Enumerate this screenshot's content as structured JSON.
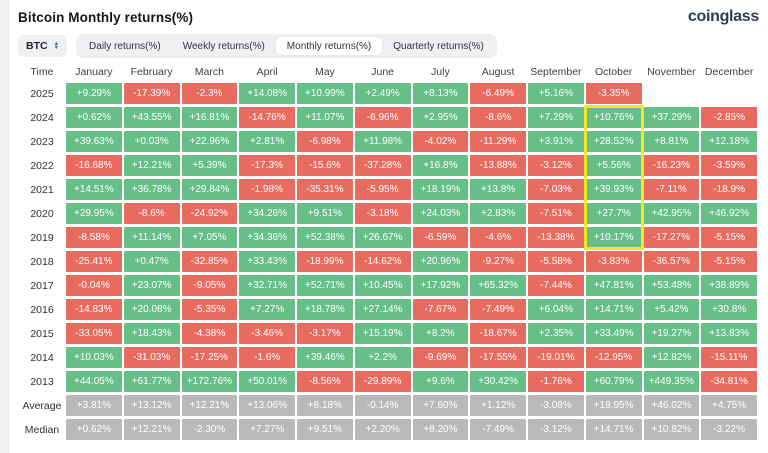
{
  "header": {
    "title": "Bitcoin Monthly returns(%)",
    "logo": "coinglass"
  },
  "toolbar": {
    "coin_selector": "BTC",
    "tabs": [
      {
        "label": "Daily returns(%)",
        "active": false
      },
      {
        "label": "Weekly returns(%)",
        "active": false
      },
      {
        "label": "Monthly returns(%)",
        "active": true
      },
      {
        "label": "Quarterly returns(%)",
        "active": false
      }
    ]
  },
  "chart_data": {
    "type": "heatmap",
    "columns": [
      "Time",
      "January",
      "February",
      "March",
      "April",
      "May",
      "June",
      "July",
      "August",
      "September",
      "October",
      "November",
      "December"
    ],
    "rows": [
      {
        "label": "2025",
        "values": [
          "+9.29%",
          "-17.39%",
          "-2.3%",
          "+14.08%",
          "+10.99%",
          "+2.49%",
          "+8.13%",
          "-6.49%",
          "+5.16%",
          "-3.35%",
          "",
          ""
        ]
      },
      {
        "label": "2024",
        "values": [
          "+0.62%",
          "+43.55%",
          "+16.81%",
          "-14.76%",
          "+11.07%",
          "-6.96%",
          "+2.95%",
          "-8.6%",
          "+7.29%",
          "+10.76%",
          "+37.29%",
          "-2.85%"
        ]
      },
      {
        "label": "2023",
        "values": [
          "+39.63%",
          "+0.03%",
          "+22.96%",
          "+2.81%",
          "-6.98%",
          "+11.98%",
          "-4.02%",
          "-11.29%",
          "+3.91%",
          "+28.52%",
          "+8.81%",
          "+12.18%"
        ]
      },
      {
        "label": "2022",
        "values": [
          "-16.68%",
          "+12.21%",
          "+5.39%",
          "-17.3%",
          "-15.6%",
          "-37.28%",
          "+16.8%",
          "-13.88%",
          "-3.12%",
          "+5.56%",
          "-16.23%",
          "-3.59%"
        ]
      },
      {
        "label": "2021",
        "values": [
          "+14.51%",
          "+36.78%",
          "+29.84%",
          "-1.98%",
          "-35.31%",
          "-5.95%",
          "+18.19%",
          "+13.8%",
          "-7.03%",
          "+39.93%",
          "-7.11%",
          "-18.9%"
        ]
      },
      {
        "label": "2020",
        "values": [
          "+29.95%",
          "-8.6%",
          "-24.92%",
          "+34.26%",
          "+9.51%",
          "-3.18%",
          "+24.03%",
          "+2.83%",
          "-7.51%",
          "+27.7%",
          "+42.95%",
          "+46.92%"
        ]
      },
      {
        "label": "2019",
        "values": [
          "-8.58%",
          "+11.14%",
          "+7.05%",
          "+34.36%",
          "+52.38%",
          "+26.67%",
          "-6.59%",
          "-4.6%",
          "-13.38%",
          "+10.17%",
          "-17.27%",
          "-5.15%"
        ]
      },
      {
        "label": "2018",
        "values": [
          "-25.41%",
          "+0.47%",
          "-32.85%",
          "+33.43%",
          "-18.99%",
          "-14.62%",
          "+20.96%",
          "-9.27%",
          "-5.58%",
          "-3.83%",
          "-36.57%",
          "-5.15%"
        ]
      },
      {
        "label": "2017",
        "values": [
          "-0.04%",
          "+23.07%",
          "-9.05%",
          "+32.71%",
          "+52.71%",
          "+10.45%",
          "+17.92%",
          "+65.32%",
          "-7.44%",
          "+47.81%",
          "+53.48%",
          "+38.89%"
        ]
      },
      {
        "label": "2016",
        "values": [
          "-14.83%",
          "+20.08%",
          "-5.35%",
          "+7.27%",
          "+18.78%",
          "+27.14%",
          "-7.67%",
          "-7.49%",
          "+6.04%",
          "+14.71%",
          "+5.42%",
          "+30.8%"
        ]
      },
      {
        "label": "2015",
        "values": [
          "-33.05%",
          "+18.43%",
          "-4.38%",
          "-3.46%",
          "-3.17%",
          "+15.19%",
          "+8.2%",
          "-18.67%",
          "+2.35%",
          "+33.49%",
          "+19.27%",
          "+13.83%"
        ]
      },
      {
        "label": "2014",
        "values": [
          "+10.03%",
          "-31.03%",
          "-17.25%",
          "-1.6%",
          "+39.46%",
          "+2.2%",
          "-9.69%",
          "-17.55%",
          "-19.01%",
          "-12.95%",
          "+12.82%",
          "-15.11%"
        ]
      },
      {
        "label": "2013",
        "values": [
          "+44.05%",
          "+61.77%",
          "+172.76%",
          "+50.01%",
          "-8.56%",
          "-29.89%",
          "+9.6%",
          "+30.42%",
          "-1.76%",
          "+60.79%",
          "+449.35%",
          "-34.81%"
        ]
      },
      {
        "label": "Average",
        "style": "gray",
        "values": [
          "+3.81%",
          "+13.12%",
          "+12.21%",
          "+13.06%",
          "+8.18%",
          "-0.14%",
          "+7.60%",
          "+1.12%",
          "-3.08%",
          "+19.95%",
          "+46.02%",
          "+4.75%"
        ]
      },
      {
        "label": "Median",
        "style": "gray",
        "values": [
          "+0.62%",
          "+12.21%",
          "-2.30%",
          "+7.27%",
          "+9.51%",
          "+2.20%",
          "+8.20%",
          "-7.49%",
          "-3.12%",
          "+14.71%",
          "+10.82%",
          "-3.22%"
        ]
      }
    ],
    "highlight": {
      "column": "October",
      "rows": [
        "2024",
        "2023",
        "2022",
        "2021",
        "2020",
        "2019"
      ],
      "color": "#f5e62c"
    }
  },
  "colors": {
    "positive_green": "#66bf87",
    "negative_red": "#e86b60",
    "neutral_gray": "#b9b9b9",
    "highlight_yellow": "#f5e62c"
  }
}
